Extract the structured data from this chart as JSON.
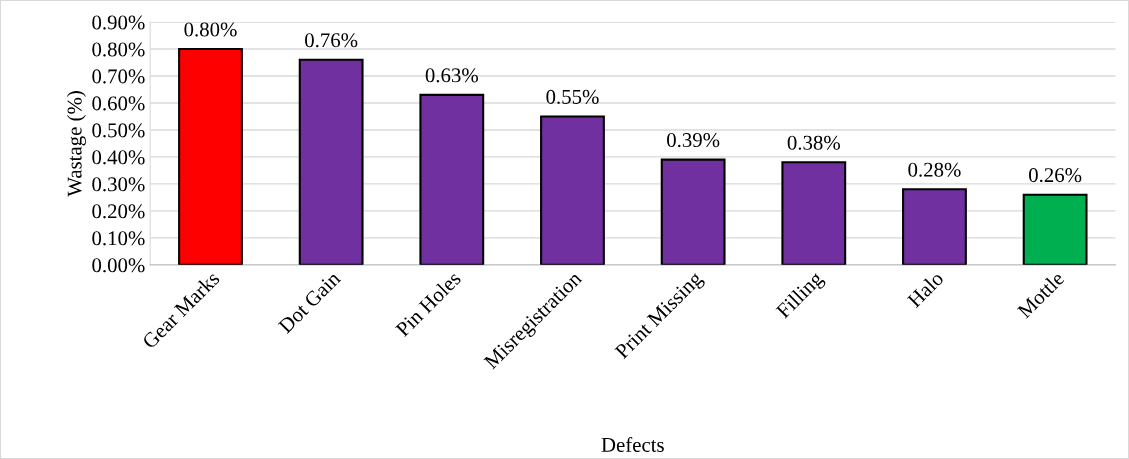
{
  "chart_data": {
    "type": "bar",
    "xlabel": "Defects",
    "ylabel": "Wastage (%)",
    "categories": [
      "Gear Marks",
      "Dot Gain",
      "Pin Holes",
      "Misregistration",
      "Print Missing",
      "Filling",
      "Halo",
      "Mottle"
    ],
    "values": [
      0.8,
      0.76,
      0.63,
      0.55,
      0.39,
      0.38,
      0.28,
      0.26
    ],
    "colors": [
      "#ff0000",
      "#7030a0",
      "#7030a0",
      "#7030a0",
      "#7030a0",
      "#7030a0",
      "#7030a0",
      "#00b050"
    ],
    "value_labels": [
      "0.80%",
      "0.76%",
      "0.63%",
      "0.55%",
      "0.39%",
      "0.38%",
      "0.28%",
      "0.26%"
    ],
    "ylim": [
      0,
      0.9
    ],
    "yticks": [
      {
        "value": 0,
        "label": "0.00%"
      },
      {
        "value": 0.1,
        "label": "0.10%"
      },
      {
        "value": 0.2,
        "label": "0.20%"
      },
      {
        "value": 0.3,
        "label": "0.30%"
      },
      {
        "value": 0.4,
        "label": "0.40%"
      },
      {
        "value": 0.5,
        "label": "0.50%"
      },
      {
        "value": 0.6,
        "label": "0.60%"
      },
      {
        "value": 0.7,
        "label": "0.70%"
      },
      {
        "value": 0.8,
        "label": "0.80%"
      },
      {
        "value": 0.9,
        "label": "0.90%"
      }
    ],
    "grid": "y",
    "legend": false
  }
}
